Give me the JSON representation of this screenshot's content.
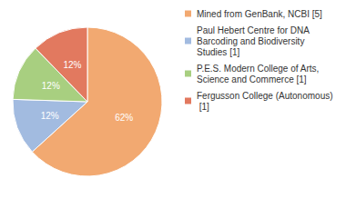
{
  "chart_data": {
    "type": "pie",
    "categories": [
      "Mined from GenBank, NCBI [5]",
      "Paul Hebert Centre for DNA Barcoding and Biodiversity Studies [1]",
      "P.E.S. Modern College of Arts, Science and Commerce [1]",
      "Fergusson College (Autonomous) [1]"
    ],
    "values": [
      62,
      12,
      12,
      12
    ],
    "value_labels": [
      "62%",
      "12%",
      "12%",
      "12%"
    ],
    "colors": [
      "#f2a971",
      "#a2bbe0",
      "#a8cf80",
      "#e2795f"
    ],
    "data_labels": true,
    "legend": "top-right"
  }
}
